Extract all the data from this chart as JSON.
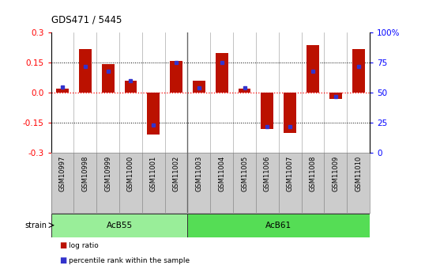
{
  "title": "GDS471 / 5445",
  "samples": [
    "GSM10997",
    "GSM10998",
    "GSM10999",
    "GSM11000",
    "GSM11001",
    "GSM11002",
    "GSM11003",
    "GSM11004",
    "GSM11005",
    "GSM11006",
    "GSM11007",
    "GSM11008",
    "GSM11009",
    "GSM11010"
  ],
  "log_ratio": [
    0.02,
    0.22,
    0.145,
    0.06,
    -0.21,
    0.16,
    0.06,
    0.2,
    0.02,
    -0.18,
    -0.2,
    0.24,
    -0.03,
    0.22
  ],
  "percentile": [
    55,
    72,
    68,
    60,
    23,
    75,
    54,
    75,
    54,
    22,
    22,
    68,
    47,
    72
  ],
  "strain_groups": [
    {
      "name": "AcB55",
      "start": 0,
      "end": 5,
      "color": "#99EE99"
    },
    {
      "name": "AcB61",
      "start": 6,
      "end": 13,
      "color": "#55DD55"
    }
  ],
  "ylim": [
    -0.3,
    0.3
  ],
  "yticks_left": [
    -0.3,
    -0.15,
    0.0,
    0.15,
    0.3
  ],
  "yticks_right_labels": [
    "0",
    "25",
    "50",
    "75",
    "100%"
  ],
  "bar_color": "#BB1100",
  "dot_color": "#3333CC",
  "label_bg": "#CCCCCC",
  "bar_width": 0.55
}
